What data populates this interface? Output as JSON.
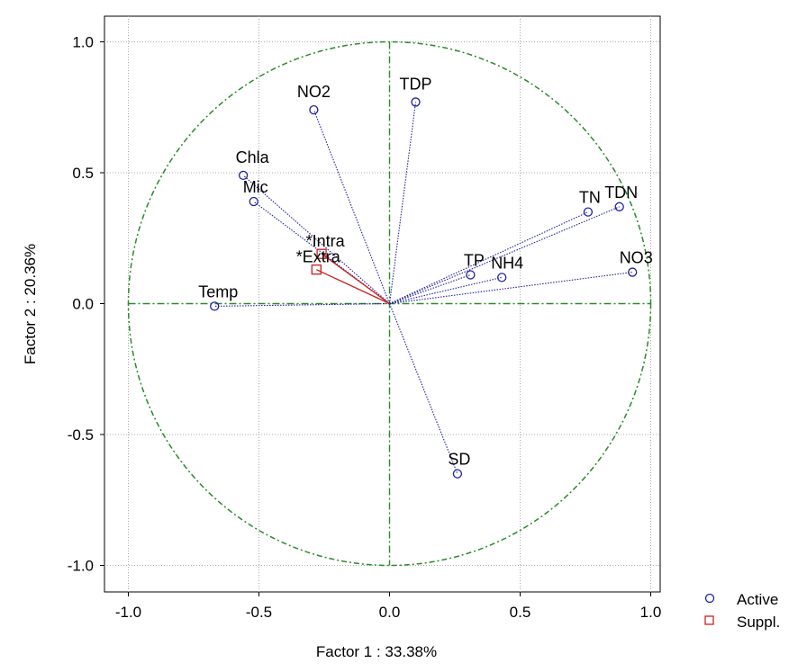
{
  "chart_data": {
    "type": "scatter",
    "xlabel": "Factor 1 : 33.38%",
    "ylabel": "Factor 2 : 20.36%",
    "xlim": [
      -1.1,
      1.1
    ],
    "ylim": [
      -1.1,
      1.1
    ],
    "x_ticks": [
      "-1.0",
      "-0.5",
      "0.0",
      "0.5",
      "1.0"
    ],
    "y_ticks": [
      "1.0",
      "0.5",
      "0.0",
      "-0.5",
      "-1.0"
    ],
    "x_tick_values": [
      -1.0,
      -0.5,
      0.0,
      0.5,
      1.0
    ],
    "y_tick_values": [
      1.0,
      0.5,
      0.0,
      -0.5,
      -1.0
    ],
    "grid": true,
    "unit_circle": true,
    "legend_position": "bottom-right",
    "legend": [
      {
        "label": "Active",
        "marker": "circle",
        "color": "#2020a0"
      },
      {
        "label": "Suppl.",
        "marker": "square",
        "color": "#cc2020"
      }
    ],
    "series": [
      {
        "name": "Active",
        "color": "#2020a0",
        "points": [
          {
            "label": "NO2",
            "x": -0.29,
            "y": 0.74
          },
          {
            "label": "TDP",
            "x": 0.1,
            "y": 0.77
          },
          {
            "label": "Chla",
            "x": -0.56,
            "y": 0.49
          },
          {
            "label": "Mic",
            "x": -0.52,
            "y": 0.39
          },
          {
            "label": "TN",
            "x": 0.76,
            "y": 0.35
          },
          {
            "label": "TDN",
            "x": 0.88,
            "y": 0.37
          },
          {
            "label": "NO3",
            "x": 0.93,
            "y": 0.12
          },
          {
            "label": "TP",
            "x": 0.31,
            "y": 0.11
          },
          {
            "label": "NH4",
            "x": 0.43,
            "y": 0.1
          },
          {
            "label": "Temp",
            "x": -0.67,
            "y": -0.01
          },
          {
            "label": "SD",
            "x": 0.26,
            "y": -0.65
          }
        ]
      },
      {
        "name": "Suppl.",
        "color": "#cc2020",
        "points": [
          {
            "label": "*Intra",
            "x": -0.26,
            "y": 0.19
          },
          {
            "label": "*Extra",
            "x": -0.28,
            "y": 0.13
          }
        ]
      }
    ]
  },
  "colors": {
    "active": "#2020a0",
    "supplementary": "#cc2020",
    "circle": "#2a8a2a",
    "grid": "#aaaaaa"
  }
}
